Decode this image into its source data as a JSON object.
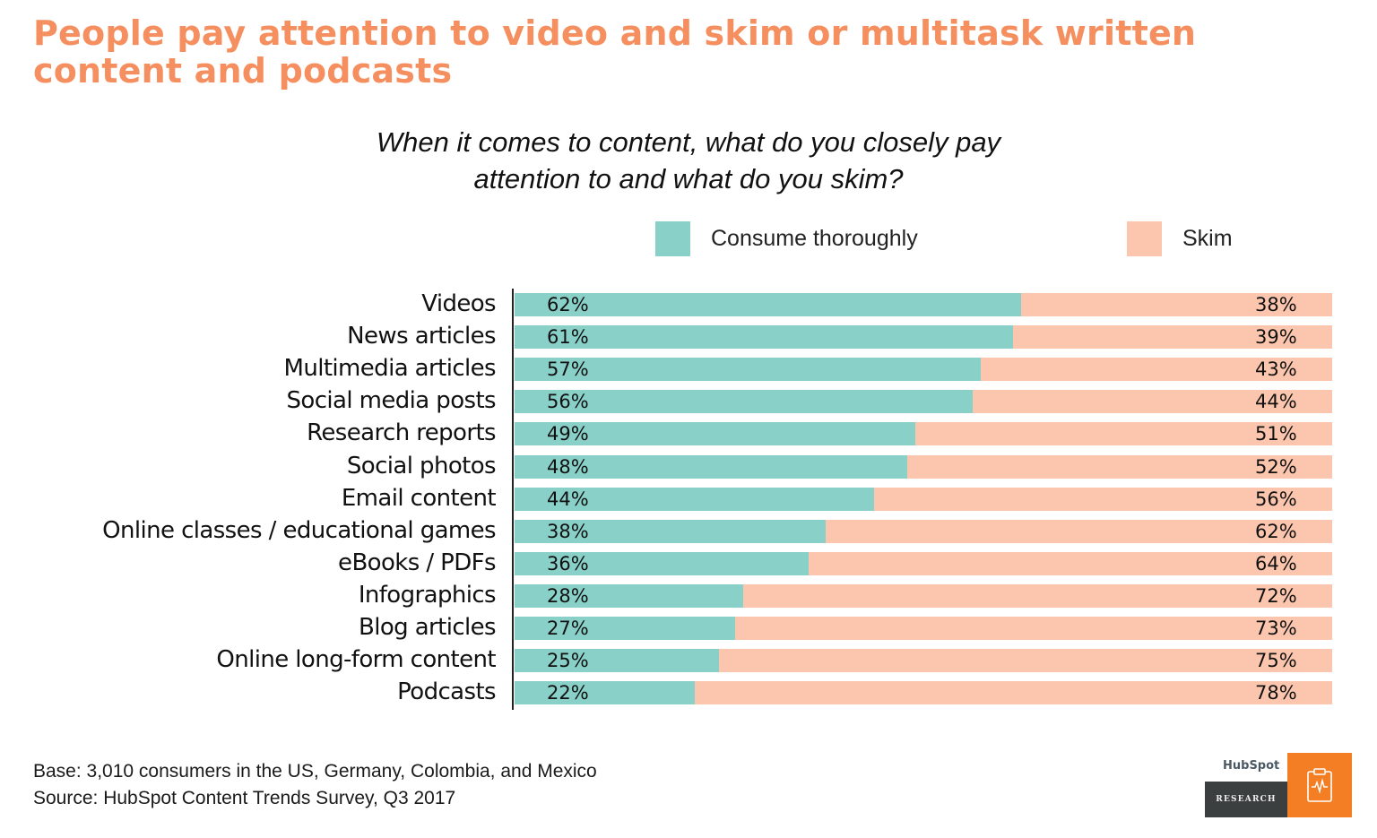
{
  "header": {
    "title": "People pay attention to video and skim or multitask written content and podcasts",
    "subtitle_line1": "When it comes to content, what do you closely pay",
    "subtitle_line2": "attention to and what do you skim?"
  },
  "legend": [
    {
      "label": "Consume thoroughly",
      "color": "#89d0c8",
      "icon": "legend-swatch-teal"
    },
    {
      "label": "Skim",
      "color": "#fbc6ad",
      "icon": "legend-swatch-peach"
    }
  ],
  "rows": [
    {
      "label": "Videos",
      "a": "62%",
      "b": "38%"
    },
    {
      "label": "News articles",
      "a": "61%",
      "b": "39%"
    },
    {
      "label": "Multimedia articles",
      "a": "57%",
      "b": "43%"
    },
    {
      "label": "Social media posts",
      "a": "56%",
      "b": "44%"
    },
    {
      "label": "Research reports",
      "a": "49%",
      "b": "51%"
    },
    {
      "label": "Social photos",
      "a": "48%",
      "b": "52%"
    },
    {
      "label": "Email content",
      "a": "44%",
      "b": "56%"
    },
    {
      "label": "Online classes / educational games",
      "a": "38%",
      "b": "62%"
    },
    {
      "label": "eBooks / PDFs",
      "a": "36%",
      "b": "64%"
    },
    {
      "label": "Infographics",
      "a": "28%",
      "b": "72%"
    },
    {
      "label": "Blog articles",
      "a": "27%",
      "b": "73%"
    },
    {
      "label": "Online long-form content",
      "a": "25%",
      "b": "75%"
    },
    {
      "label": "Podcasts",
      "a": "22%",
      "b": "78%"
    }
  ],
  "footer": {
    "base": "Base: 3,010 consumers in the US, Germany, Colombia, and Mexico",
    "source": "Source: HubSpot Content Trends Survey, Q3 2017"
  },
  "logo": {
    "brand": "HubSpot",
    "label": "RESEARCH",
    "icon": "clipboard-pulse-icon"
  },
  "colors": {
    "title": "#f58f5f",
    "consume": "#89d0c8",
    "skim": "#fbc6ad",
    "logo_orange": "#f47e24",
    "logo_dark": "#3b3f40"
  },
  "chart_data": {
    "type": "bar",
    "orientation": "horizontal",
    "stacked": true,
    "percent_stacked": true,
    "title": "People pay attention to video and skim or multitask written content and podcasts",
    "subtitle": "When it comes to content, what do you closely pay attention to and what do you skim?",
    "xlabel": "",
    "ylabel": "",
    "xlim": [
      0,
      100
    ],
    "grid": false,
    "legend_position": "top",
    "categories": [
      "Videos",
      "News articles",
      "Multimedia articles",
      "Social media posts",
      "Research reports",
      "Social photos",
      "Email content",
      "Online classes / educational games",
      "eBooks / PDFs",
      "Infographics",
      "Blog articles",
      "Online long-form content",
      "Podcasts"
    ],
    "series": [
      {
        "name": "Consume thoroughly",
        "color": "#89d0c8",
        "values": [
          62,
          61,
          57,
          56,
          49,
          48,
          44,
          38,
          36,
          28,
          27,
          25,
          22
        ]
      },
      {
        "name": "Skim",
        "color": "#fbc6ad",
        "values": [
          38,
          39,
          43,
          44,
          51,
          52,
          56,
          62,
          64,
          72,
          73,
          75,
          78
        ]
      }
    ],
    "annotations": [
      "Base: 3,010 consumers in the US, Germany, Colombia, and Mexico",
      "Source: HubSpot Content Trends Survey, Q3 2017"
    ]
  }
}
